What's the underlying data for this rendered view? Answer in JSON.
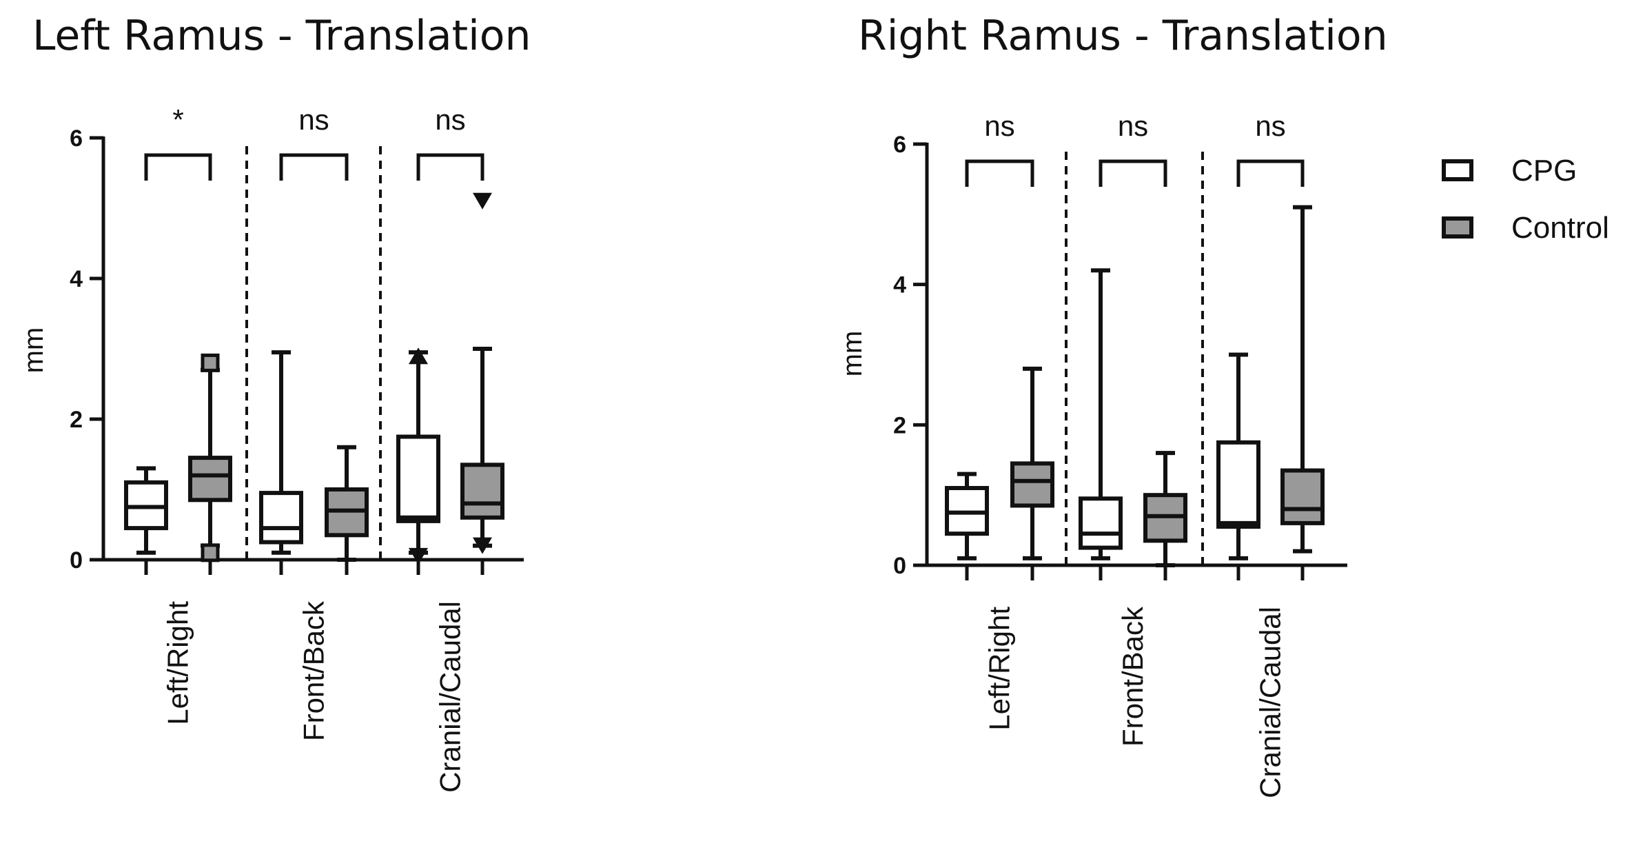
{
  "chart_data": [
    {
      "type": "box",
      "title": "Left Ramus - Translation",
      "ylabel": "mm",
      "ylim": [
        0,
        6
      ],
      "yticks": [
        0,
        2,
        4,
        6
      ],
      "categories": [
        "Left/Right",
        "Front/Back",
        "Cranial/Caudal"
      ],
      "series": [
        {
          "name": "CPG",
          "color": "#ffffff",
          "boxes": [
            {
              "min": 0.1,
              "q1": 0.45,
              "median": 0.75,
              "q3": 1.1,
              "max": 1.3
            },
            {
              "min": 0.1,
              "q1": 0.25,
              "median": 0.45,
              "q3": 0.95,
              "max": 2.95
            },
            {
              "min": 0.1,
              "q1": 0.55,
              "median": 0.6,
              "q3": 1.75,
              "max": 2.95
            }
          ]
        },
        {
          "name": "Control",
          "color": "#999999",
          "boxes": [
            {
              "min": 0.2,
              "q1": 0.85,
              "median": 1.2,
              "q3": 1.45,
              "max": 2.7
            },
            {
              "min": 0.0,
              "q1": 0.35,
              "median": 0.7,
              "q3": 1.0,
              "max": 1.6
            },
            {
              "min": 0.2,
              "q1": 0.6,
              "median": 0.8,
              "q3": 1.35,
              "max": 3.0
            }
          ]
        }
      ],
      "outliers": [
        {
          "category": 0,
          "series": 1,
          "value": 2.8,
          "marker": "square"
        },
        {
          "category": 0,
          "series": 1,
          "value": 0.1,
          "marker": "square"
        },
        {
          "category": 2,
          "series": 0,
          "value": 2.9,
          "marker": "triangle-up"
        },
        {
          "category": 2,
          "series": 0,
          "value": 0.05,
          "marker": "triangle-down"
        },
        {
          "category": 2,
          "series": 1,
          "value": 5.1,
          "marker": "triangle-down"
        },
        {
          "category": 2,
          "series": 1,
          "value": 0.2,
          "marker": "triangle-down"
        }
      ],
      "significance": [
        "*",
        "ns",
        "ns"
      ]
    },
    {
      "type": "box",
      "title": "Right Ramus - Translation",
      "ylabel": "mm",
      "ylim": [
        0,
        6
      ],
      "yticks": [
        0,
        2,
        4,
        6
      ],
      "categories": [
        "Left/Right",
        "Front/Back",
        "Cranial/Caudal"
      ],
      "series": [
        {
          "name": "CPG",
          "color": "#ffffff",
          "boxes": [
            {
              "min": 0.1,
              "q1": 0.45,
              "median": 0.75,
              "q3": 1.1,
              "max": 1.3
            },
            {
              "min": 0.1,
              "q1": 0.25,
              "median": 0.45,
              "q3": 0.95,
              "max": 4.2
            },
            {
              "min": 0.1,
              "q1": 0.55,
              "median": 0.6,
              "q3": 1.75,
              "max": 3.0
            }
          ]
        },
        {
          "name": "Control",
          "color": "#999999",
          "boxes": [
            {
              "min": 0.1,
              "q1": 0.85,
              "median": 1.2,
              "q3": 1.45,
              "max": 2.8
            },
            {
              "min": 0.0,
              "q1": 0.35,
              "median": 0.7,
              "q3": 1.0,
              "max": 1.6
            },
            {
              "min": 0.2,
              "q1": 0.6,
              "median": 0.8,
              "q3": 1.35,
              "max": 5.1
            }
          ]
        }
      ],
      "outliers": [],
      "significance": [
        "ns",
        "ns",
        "ns"
      ]
    }
  ],
  "legend": {
    "position": "right",
    "items": [
      {
        "label": "CPG",
        "color": "#ffffff"
      },
      {
        "label": "Control",
        "color": "#999999"
      }
    ]
  }
}
